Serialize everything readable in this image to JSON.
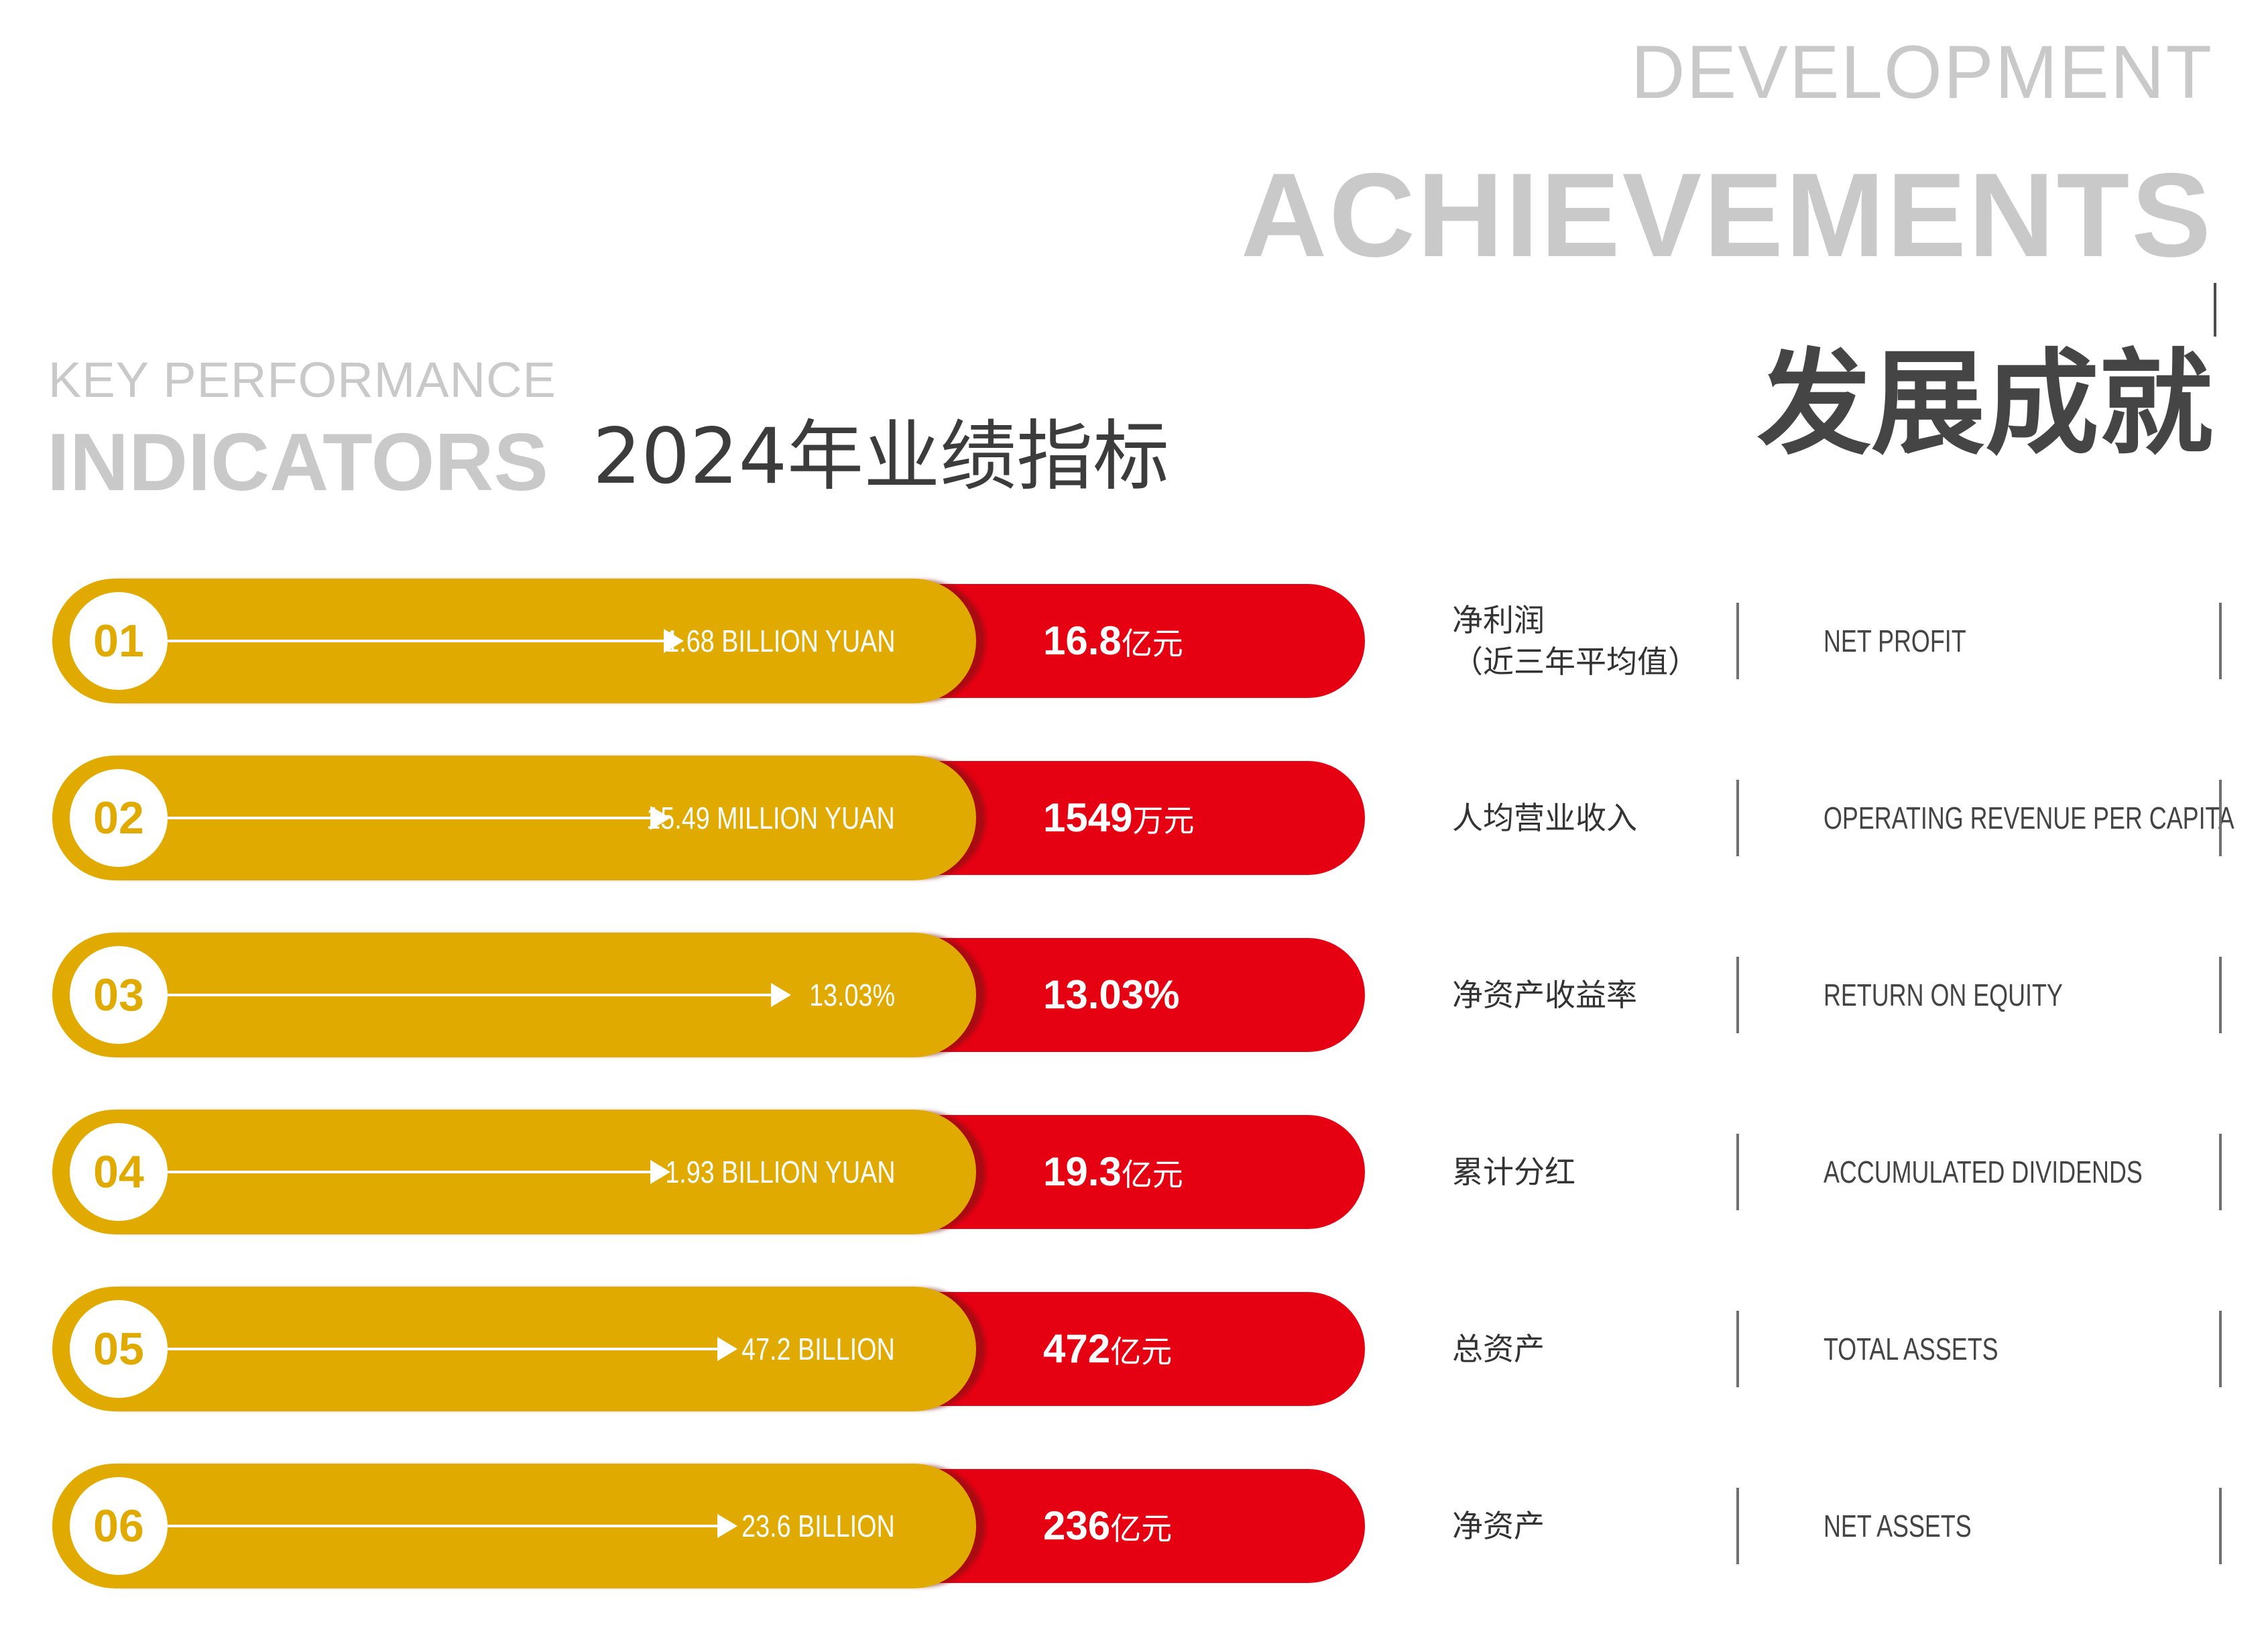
{
  "header": {
    "development": "DEVELOPMENT",
    "achievements": "ACHIEVEMENTS",
    "cn_title": "发展成就"
  },
  "section": {
    "key_performance": "KEY PERFORMANCE",
    "indicators": "INDICATORS",
    "cn_title": "2024年业绩指标"
  },
  "colors": {
    "gold": "#e1aa00",
    "red": "#e50012",
    "gray": "#c9c9c9"
  },
  "icons": {
    "arrow": "right-arrow-icon"
  },
  "rows": [
    {
      "num": "01",
      "eng_value": "1.68 BILLION YUAN",
      "big_number": "16.8",
      "big_unit": "亿元",
      "cn_label": "净利润\n（近三年平均值）",
      "en_label": "NET PROFIT"
    },
    {
      "num": "02",
      "eng_value": "15.49 MILLION YUAN",
      "big_number": "1549",
      "big_unit": "万元",
      "cn_label": "人均营业收入",
      "en_label": "OPERATING REVENUE PER CAPITA"
    },
    {
      "num": "03",
      "eng_value": "13.03%",
      "big_number": "13.03%",
      "big_unit": "",
      "cn_label": "净资产收益率",
      "en_label": "RETURN ON EQUITY"
    },
    {
      "num": "04",
      "eng_value": "1.93 BILLION YUAN",
      "big_number": "19.3",
      "big_unit": "亿元",
      "cn_label": "累计分红",
      "en_label": "ACCUMULATED DIVIDENDS"
    },
    {
      "num": "05",
      "eng_value": "47.2 BILLION",
      "big_number": "472",
      "big_unit": "亿元",
      "cn_label": "总资产",
      "en_label": "TOTAL ASSETS"
    },
    {
      "num": "06",
      "eng_value": "23.6 BILLION",
      "big_number": "236",
      "big_unit": "亿元",
      "cn_label": "净资产",
      "en_label": "NET ASSETS"
    }
  ]
}
